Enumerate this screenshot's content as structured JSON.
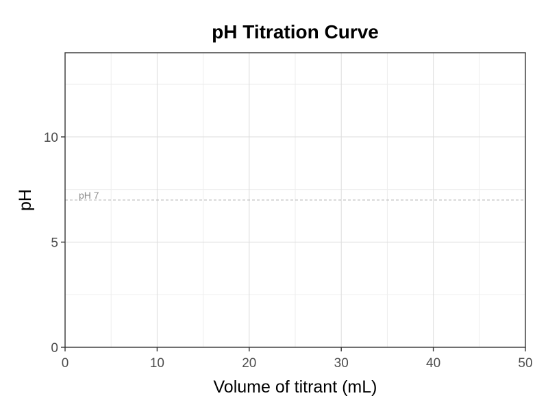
{
  "chart_data": {
    "type": "line",
    "title": "pH Titration Curve",
    "xlabel": "Volume of titrant (mL)",
    "ylabel": "pH",
    "xlim": [
      0,
      50
    ],
    "ylim": [
      0,
      14
    ],
    "x_ticks": [
      0,
      10,
      20,
      30,
      40,
      50
    ],
    "y_ticks": [
      0,
      5,
      10
    ],
    "x_tick_labels": [
      "0",
      "10",
      "20",
      "30",
      "40",
      "50"
    ],
    "y_tick_labels": [
      "0",
      "5",
      "10"
    ],
    "grid": true,
    "series": [],
    "reference_lines": [
      {
        "axis": "y",
        "value": 7,
        "label": "pH 7",
        "style": "dashed",
        "color": "#b3b3b3"
      }
    ]
  }
}
